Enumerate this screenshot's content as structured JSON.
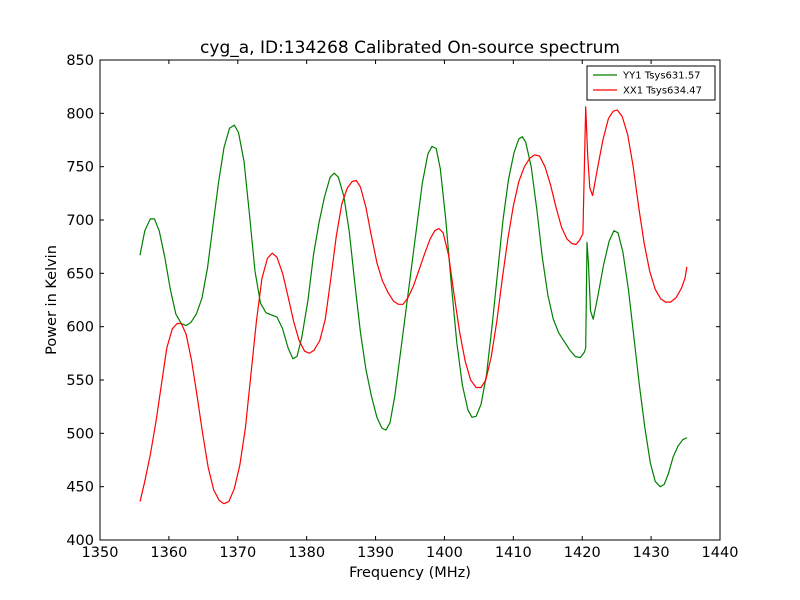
{
  "chart_data": {
    "type": "line",
    "title": "cyg_a, ID:134268 Calibrated On-source spectrum",
    "xlabel": "Frequency (MHz)",
    "ylabel": "Power in Kelvin",
    "xlim": [
      1350,
      1440
    ],
    "ylim": [
      400,
      850
    ],
    "xticks": [
      1350,
      1360,
      1370,
      1380,
      1390,
      1400,
      1410,
      1420,
      1430,
      1440
    ],
    "yticks": [
      400,
      450,
      500,
      550,
      600,
      650,
      700,
      750,
      800,
      850
    ],
    "grid": false,
    "legend_position": "top-right",
    "series": [
      {
        "name": "YY1 Tsys631.57",
        "color": "#008000",
        "points": [
          [
            1355.8,
            667
          ],
          [
            1356.5,
            690
          ],
          [
            1357.3,
            701
          ],
          [
            1357.9,
            701
          ],
          [
            1358.6,
            690
          ],
          [
            1359.4,
            665
          ],
          [
            1360.2,
            635
          ],
          [
            1361.0,
            612
          ],
          [
            1361.8,
            603
          ],
          [
            1362.5,
            601
          ],
          [
            1363.2,
            604
          ],
          [
            1364.0,
            612
          ],
          [
            1364.8,
            627
          ],
          [
            1365.6,
            655
          ],
          [
            1366.4,
            695
          ],
          [
            1367.2,
            735
          ],
          [
            1368.0,
            768
          ],
          [
            1368.8,
            786
          ],
          [
            1369.5,
            789
          ],
          [
            1370.1,
            782
          ],
          [
            1370.9,
            755
          ],
          [
            1371.7,
            705
          ],
          [
            1372.5,
            652
          ],
          [
            1373.3,
            622
          ],
          [
            1374.1,
            613
          ],
          [
            1374.9,
            611
          ],
          [
            1375.7,
            609
          ],
          [
            1376.5,
            598
          ],
          [
            1377.3,
            580
          ],
          [
            1378.0,
            570
          ],
          [
            1378.6,
            572
          ],
          [
            1379.3,
            590
          ],
          [
            1380.2,
            625
          ],
          [
            1381.0,
            668
          ],
          [
            1381.8,
            698
          ],
          [
            1382.6,
            722
          ],
          [
            1383.4,
            740
          ],
          [
            1384.0,
            744
          ],
          [
            1384.6,
            740
          ],
          [
            1385.4,
            722
          ],
          [
            1386.2,
            688
          ],
          [
            1387.0,
            640
          ],
          [
            1387.8,
            595
          ],
          [
            1388.6,
            560
          ],
          [
            1389.4,
            535
          ],
          [
            1390.2,
            515
          ],
          [
            1390.9,
            505
          ],
          [
            1391.5,
            503
          ],
          [
            1392.1,
            510
          ],
          [
            1392.8,
            535
          ],
          [
            1393.6,
            575
          ],
          [
            1394.4,
            615
          ],
          [
            1395.2,
            655
          ],
          [
            1396.0,
            695
          ],
          [
            1396.8,
            735
          ],
          [
            1397.6,
            762
          ],
          [
            1398.2,
            769
          ],
          [
            1398.8,
            767
          ],
          [
            1399.4,
            748
          ],
          [
            1400.2,
            700
          ],
          [
            1401.0,
            640
          ],
          [
            1401.8,
            585
          ],
          [
            1402.6,
            545
          ],
          [
            1403.4,
            522
          ],
          [
            1404.0,
            515
          ],
          [
            1404.6,
            516
          ],
          [
            1405.3,
            527
          ],
          [
            1406.1,
            555
          ],
          [
            1406.9,
            600
          ],
          [
            1407.7,
            650
          ],
          [
            1408.5,
            700
          ],
          [
            1409.3,
            738
          ],
          [
            1410.1,
            763
          ],
          [
            1410.8,
            776
          ],
          [
            1411.3,
            778
          ],
          [
            1411.8,
            773
          ],
          [
            1412.6,
            750
          ],
          [
            1413.4,
            710
          ],
          [
            1414.2,
            665
          ],
          [
            1415.0,
            630
          ],
          [
            1415.8,
            607
          ],
          [
            1416.6,
            594
          ],
          [
            1417.4,
            586
          ],
          [
            1418.2,
            578
          ],
          [
            1419.0,
            572
          ],
          [
            1419.7,
            571
          ],
          [
            1420.3,
            576
          ],
          [
            1420.5,
            580
          ],
          [
            1420.7,
            679
          ],
          [
            1420.9,
            660
          ],
          [
            1421.2,
            615
          ],
          [
            1421.6,
            607
          ],
          [
            1422.3,
            630
          ],
          [
            1423.1,
            658
          ],
          [
            1423.9,
            680
          ],
          [
            1424.6,
            690
          ],
          [
            1425.2,
            688
          ],
          [
            1425.9,
            670
          ],
          [
            1426.7,
            635
          ],
          [
            1427.5,
            590
          ],
          [
            1428.3,
            545
          ],
          [
            1429.1,
            505
          ],
          [
            1429.9,
            472
          ],
          [
            1430.6,
            455
          ],
          [
            1431.3,
            450
          ],
          [
            1431.9,
            452
          ],
          [
            1432.5,
            462
          ],
          [
            1433.2,
            478
          ],
          [
            1433.9,
            488
          ],
          [
            1434.6,
            494
          ],
          [
            1435.2,
            496
          ]
        ]
      },
      {
        "name": "XX1 Tsys634.47",
        "color": "#ff0000",
        "points": [
          [
            1355.8,
            436
          ],
          [
            1356.5,
            455
          ],
          [
            1357.3,
            480
          ],
          [
            1358.1,
            510
          ],
          [
            1358.9,
            545
          ],
          [
            1359.7,
            580
          ],
          [
            1360.5,
            598
          ],
          [
            1361.2,
            603
          ],
          [
            1361.8,
            603
          ],
          [
            1362.5,
            593
          ],
          [
            1363.3,
            568
          ],
          [
            1364.1,
            535
          ],
          [
            1364.9,
            500
          ],
          [
            1365.7,
            468
          ],
          [
            1366.5,
            447
          ],
          [
            1367.3,
            437
          ],
          [
            1368.0,
            434
          ],
          [
            1368.7,
            436
          ],
          [
            1369.5,
            448
          ],
          [
            1370.3,
            470
          ],
          [
            1371.1,
            505
          ],
          [
            1371.9,
            555
          ],
          [
            1372.7,
            605
          ],
          [
            1373.5,
            645
          ],
          [
            1374.3,
            664
          ],
          [
            1375.0,
            669
          ],
          [
            1375.7,
            665
          ],
          [
            1376.5,
            650
          ],
          [
            1377.3,
            628
          ],
          [
            1378.1,
            605
          ],
          [
            1378.9,
            587
          ],
          [
            1379.7,
            577
          ],
          [
            1380.4,
            575
          ],
          [
            1381.1,
            578
          ],
          [
            1381.9,
            587
          ],
          [
            1382.7,
            607
          ],
          [
            1383.5,
            645
          ],
          [
            1384.3,
            685
          ],
          [
            1385.1,
            715
          ],
          [
            1385.9,
            730
          ],
          [
            1386.6,
            736
          ],
          [
            1387.2,
            737
          ],
          [
            1387.8,
            731
          ],
          [
            1388.6,
            712
          ],
          [
            1389.4,
            685
          ],
          [
            1390.2,
            660
          ],
          [
            1391.0,
            643
          ],
          [
            1391.8,
            632
          ],
          [
            1392.6,
            624
          ],
          [
            1393.3,
            621
          ],
          [
            1394.0,
            621
          ],
          [
            1394.7,
            627
          ],
          [
            1395.5,
            638
          ],
          [
            1396.3,
            653
          ],
          [
            1397.1,
            668
          ],
          [
            1397.9,
            682
          ],
          [
            1398.6,
            690
          ],
          [
            1399.2,
            692
          ],
          [
            1399.8,
            688
          ],
          [
            1400.6,
            667
          ],
          [
            1401.4,
            630
          ],
          [
            1402.2,
            595
          ],
          [
            1403.0,
            568
          ],
          [
            1403.8,
            550
          ],
          [
            1404.6,
            543
          ],
          [
            1405.3,
            543
          ],
          [
            1406.0,
            550
          ],
          [
            1406.8,
            572
          ],
          [
            1407.6,
            605
          ],
          [
            1408.4,
            645
          ],
          [
            1409.2,
            682
          ],
          [
            1410.0,
            713
          ],
          [
            1410.8,
            736
          ],
          [
            1411.6,
            750
          ],
          [
            1412.4,
            758
          ],
          [
            1413.1,
            761
          ],
          [
            1413.8,
            760
          ],
          [
            1414.6,
            750
          ],
          [
            1415.4,
            733
          ],
          [
            1416.2,
            712
          ],
          [
            1417.0,
            693
          ],
          [
            1417.8,
            682
          ],
          [
            1418.5,
            678
          ],
          [
            1419.1,
            677
          ],
          [
            1419.6,
            681
          ],
          [
            1420.1,
            687
          ],
          [
            1420.5,
            806
          ],
          [
            1420.8,
            760
          ],
          [
            1421.1,
            730
          ],
          [
            1421.5,
            723
          ],
          [
            1422.2,
            748
          ],
          [
            1423.0,
            775
          ],
          [
            1423.8,
            795
          ],
          [
            1424.5,
            802
          ],
          [
            1425.1,
            803
          ],
          [
            1425.8,
            797
          ],
          [
            1426.6,
            780
          ],
          [
            1427.4,
            750
          ],
          [
            1428.2,
            712
          ],
          [
            1429.0,
            678
          ],
          [
            1429.8,
            652
          ],
          [
            1430.6,
            635
          ],
          [
            1431.4,
            626
          ],
          [
            1432.1,
            623
          ],
          [
            1432.8,
            623
          ],
          [
            1433.6,
            627
          ],
          [
            1434.4,
            636
          ],
          [
            1434.9,
            645
          ],
          [
            1435.2,
            656
          ]
        ]
      }
    ]
  }
}
